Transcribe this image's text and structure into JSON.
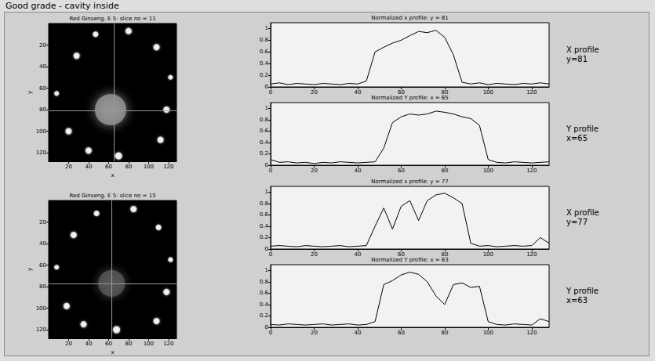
{
  "title": "Good grade - cavity inside",
  "chart_data": [
    {
      "type": "image",
      "title": "Red Ginseng. E 5: slice no = 11",
      "x_label": "x",
      "y_label": "y",
      "xlim": [
        0,
        128
      ],
      "ylim": [
        0,
        128
      ],
      "xticks": [
        20,
        40,
        60,
        80,
        100,
        120
      ],
      "yticks": [
        20,
        40,
        60,
        80,
        100,
        120
      ],
      "points": {
        "x": [
          28,
          47,
          80,
          108,
          122,
          118,
          112,
          70,
          40,
          20,
          8,
          62
        ],
        "y": [
          30,
          10,
          7,
          22,
          50,
          80,
          108,
          123,
          118,
          100,
          65,
          80
        ],
        "size": [
          8,
          7,
          8,
          8,
          6,
          8,
          8,
          9,
          8,
          8,
          6,
          40
        ],
        "level": [
          1,
          1,
          1,
          1,
          1,
          1,
          1,
          1,
          1,
          1,
          1,
          0.6
        ]
      },
      "crosshair": {
        "x": 65,
        "y": 81
      }
    },
    {
      "type": "line",
      "title": "Normalized x profile: y = 81",
      "annotations": [
        "X profile",
        "y=81"
      ],
      "xlim": [
        0,
        128
      ],
      "ylim": [
        0,
        1.1
      ],
      "xticks": [
        0,
        20,
        40,
        60,
        80,
        100,
        120
      ],
      "yticks": [
        0,
        0.2,
        0.4,
        0.6,
        0.8,
        1
      ],
      "x": [
        0,
        4,
        8,
        12,
        16,
        20,
        24,
        28,
        32,
        36,
        40,
        44,
        48,
        52,
        56,
        60,
        64,
        68,
        72,
        76,
        80,
        84,
        88,
        92,
        96,
        100,
        104,
        108,
        112,
        116,
        120,
        124,
        128
      ],
      "values": [
        0.05,
        0.07,
        0.04,
        0.06,
        0.05,
        0.04,
        0.06,
        0.05,
        0.04,
        0.06,
        0.05,
        0.1,
        0.6,
        0.68,
        0.75,
        0.8,
        0.88,
        0.95,
        0.93,
        0.97,
        0.85,
        0.55,
        0.08,
        0.05,
        0.07,
        0.04,
        0.06,
        0.05,
        0.04,
        0.06,
        0.05,
        0.07,
        0.05
      ]
    },
    {
      "type": "line",
      "title": "Normalized Y profile: x = 65",
      "annotations": [
        "Y profile",
        "x=65"
      ],
      "xlim": [
        0,
        128
      ],
      "ylim": [
        0,
        1.1
      ],
      "xticks": [
        0,
        20,
        40,
        60,
        80,
        100,
        120
      ],
      "yticks": [
        0,
        0.2,
        0.4,
        0.6,
        0.8,
        1
      ],
      "x": [
        0,
        4,
        8,
        12,
        16,
        20,
        24,
        28,
        32,
        36,
        40,
        44,
        48,
        52,
        56,
        60,
        64,
        68,
        72,
        76,
        80,
        84,
        88,
        92,
        96,
        100,
        104,
        108,
        112,
        116,
        120,
        124,
        128
      ],
      "values": [
        0.1,
        0.05,
        0.06,
        0.04,
        0.05,
        0.03,
        0.05,
        0.04,
        0.06,
        0.05,
        0.04,
        0.05,
        0.06,
        0.3,
        0.75,
        0.85,
        0.9,
        0.88,
        0.9,
        0.95,
        0.93,
        0.9,
        0.85,
        0.82,
        0.7,
        0.1,
        0.05,
        0.04,
        0.06,
        0.05,
        0.04,
        0.05,
        0.06
      ]
    },
    {
      "type": "image",
      "title": "Red Ginseng. E 5: slice no = 15",
      "x_label": "x",
      "y_label": "y",
      "xlim": [
        0,
        128
      ],
      "ylim": [
        0,
        128
      ],
      "xticks": [
        20,
        40,
        60,
        80,
        100,
        120
      ],
      "yticks": [
        20,
        40,
        60,
        80,
        100,
        120
      ],
      "points": {
        "x": [
          25,
          48,
          85,
          110,
          122,
          118,
          108,
          68,
          35,
          18,
          8,
          63
        ],
        "y": [
          32,
          12,
          8,
          25,
          55,
          85,
          112,
          120,
          115,
          98,
          62,
          77
        ],
        "size": [
          8,
          7,
          8,
          7,
          6,
          8,
          8,
          9,
          8,
          8,
          6,
          34
        ],
        "level": [
          1,
          1,
          1,
          1,
          1,
          1,
          1,
          1,
          1,
          1,
          1,
          0.35
        ]
      },
      "crosshair": {
        "x": 63,
        "y": 77
      }
    },
    {
      "type": "line",
      "title": "Normalized x profile: y = 77",
      "annotations": [
        "X profile",
        "y=77"
      ],
      "xlim": [
        0,
        128
      ],
      "ylim": [
        0,
        1.1
      ],
      "xticks": [
        0,
        20,
        40,
        60,
        80,
        100,
        120
      ],
      "yticks": [
        0,
        0.2,
        0.4,
        0.6,
        0.8,
        1
      ],
      "x": [
        0,
        4,
        8,
        12,
        16,
        20,
        24,
        28,
        32,
        36,
        40,
        44,
        48,
        52,
        56,
        60,
        64,
        68,
        72,
        76,
        80,
        84,
        88,
        92,
        96,
        100,
        104,
        108,
        112,
        116,
        120,
        124,
        128
      ],
      "values": [
        0.05,
        0.06,
        0.05,
        0.04,
        0.06,
        0.05,
        0.04,
        0.05,
        0.06,
        0.04,
        0.05,
        0.06,
        0.4,
        0.72,
        0.35,
        0.75,
        0.85,
        0.5,
        0.85,
        0.95,
        0.98,
        0.9,
        0.8,
        0.1,
        0.05,
        0.06,
        0.04,
        0.05,
        0.06,
        0.05,
        0.06,
        0.2,
        0.1
      ]
    },
    {
      "type": "line",
      "title": "Normalized Y profile: x = 63",
      "annotations": [
        "Y profile",
        "x=63"
      ],
      "xlim": [
        0,
        128
      ],
      "ylim": [
        0,
        1.1
      ],
      "xticks": [
        0,
        20,
        40,
        60,
        80,
        100,
        120
      ],
      "yticks": [
        0,
        0.2,
        0.4,
        0.6,
        0.8,
        1
      ],
      "x": [
        0,
        4,
        8,
        12,
        16,
        20,
        24,
        28,
        32,
        36,
        40,
        44,
        48,
        52,
        56,
        60,
        64,
        68,
        72,
        76,
        80,
        84,
        88,
        92,
        96,
        100,
        104,
        108,
        112,
        116,
        120,
        124,
        128
      ],
      "values": [
        0.05,
        0.04,
        0.06,
        0.05,
        0.04,
        0.05,
        0.06,
        0.04,
        0.05,
        0.06,
        0.04,
        0.05,
        0.1,
        0.75,
        0.82,
        0.92,
        0.97,
        0.93,
        0.8,
        0.55,
        0.4,
        0.75,
        0.78,
        0.7,
        0.72,
        0.1,
        0.05,
        0.04,
        0.06,
        0.05,
        0.04,
        0.15,
        0.1
      ]
    }
  ]
}
